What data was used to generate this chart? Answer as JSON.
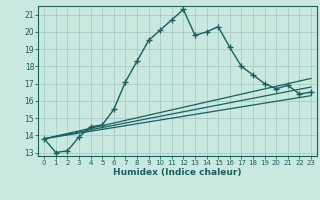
{
  "xlabel": "Humidex (Indice chaleur)",
  "bg_color": "#c8e8e0",
  "grid_color": "#aaccc8",
  "line_color": "#1a6060",
  "xlim": [
    -0.5,
    23.5
  ],
  "ylim": [
    12.8,
    21.5
  ],
  "yticks": [
    13,
    14,
    15,
    16,
    17,
    18,
    19,
    20,
    21
  ],
  "xticks": [
    0,
    1,
    2,
    3,
    4,
    5,
    6,
    7,
    8,
    9,
    10,
    11,
    12,
    13,
    14,
    15,
    16,
    17,
    18,
    19,
    20,
    21,
    22,
    23
  ],
  "line1_x": [
    0,
    1,
    2,
    3,
    4,
    5,
    6,
    7,
    8,
    9,
    10,
    11,
    12,
    13,
    14,
    15,
    16,
    17,
    18,
    19,
    20,
    21,
    22,
    23
  ],
  "line1_y": [
    13.8,
    13.0,
    13.1,
    13.9,
    14.5,
    14.6,
    15.5,
    17.1,
    18.3,
    19.5,
    20.1,
    20.7,
    21.3,
    19.8,
    20.0,
    20.3,
    19.1,
    18.0,
    17.5,
    17.0,
    16.7,
    16.9,
    16.4,
    16.5
  ],
  "line2_x": [
    0,
    23
  ],
  "line2_y": [
    13.8,
    17.3
  ],
  "line3_x": [
    0,
    23
  ],
  "line3_y": [
    13.8,
    16.8
  ],
  "line4_x": [
    0,
    23
  ],
  "line4_y": [
    13.8,
    16.3
  ]
}
